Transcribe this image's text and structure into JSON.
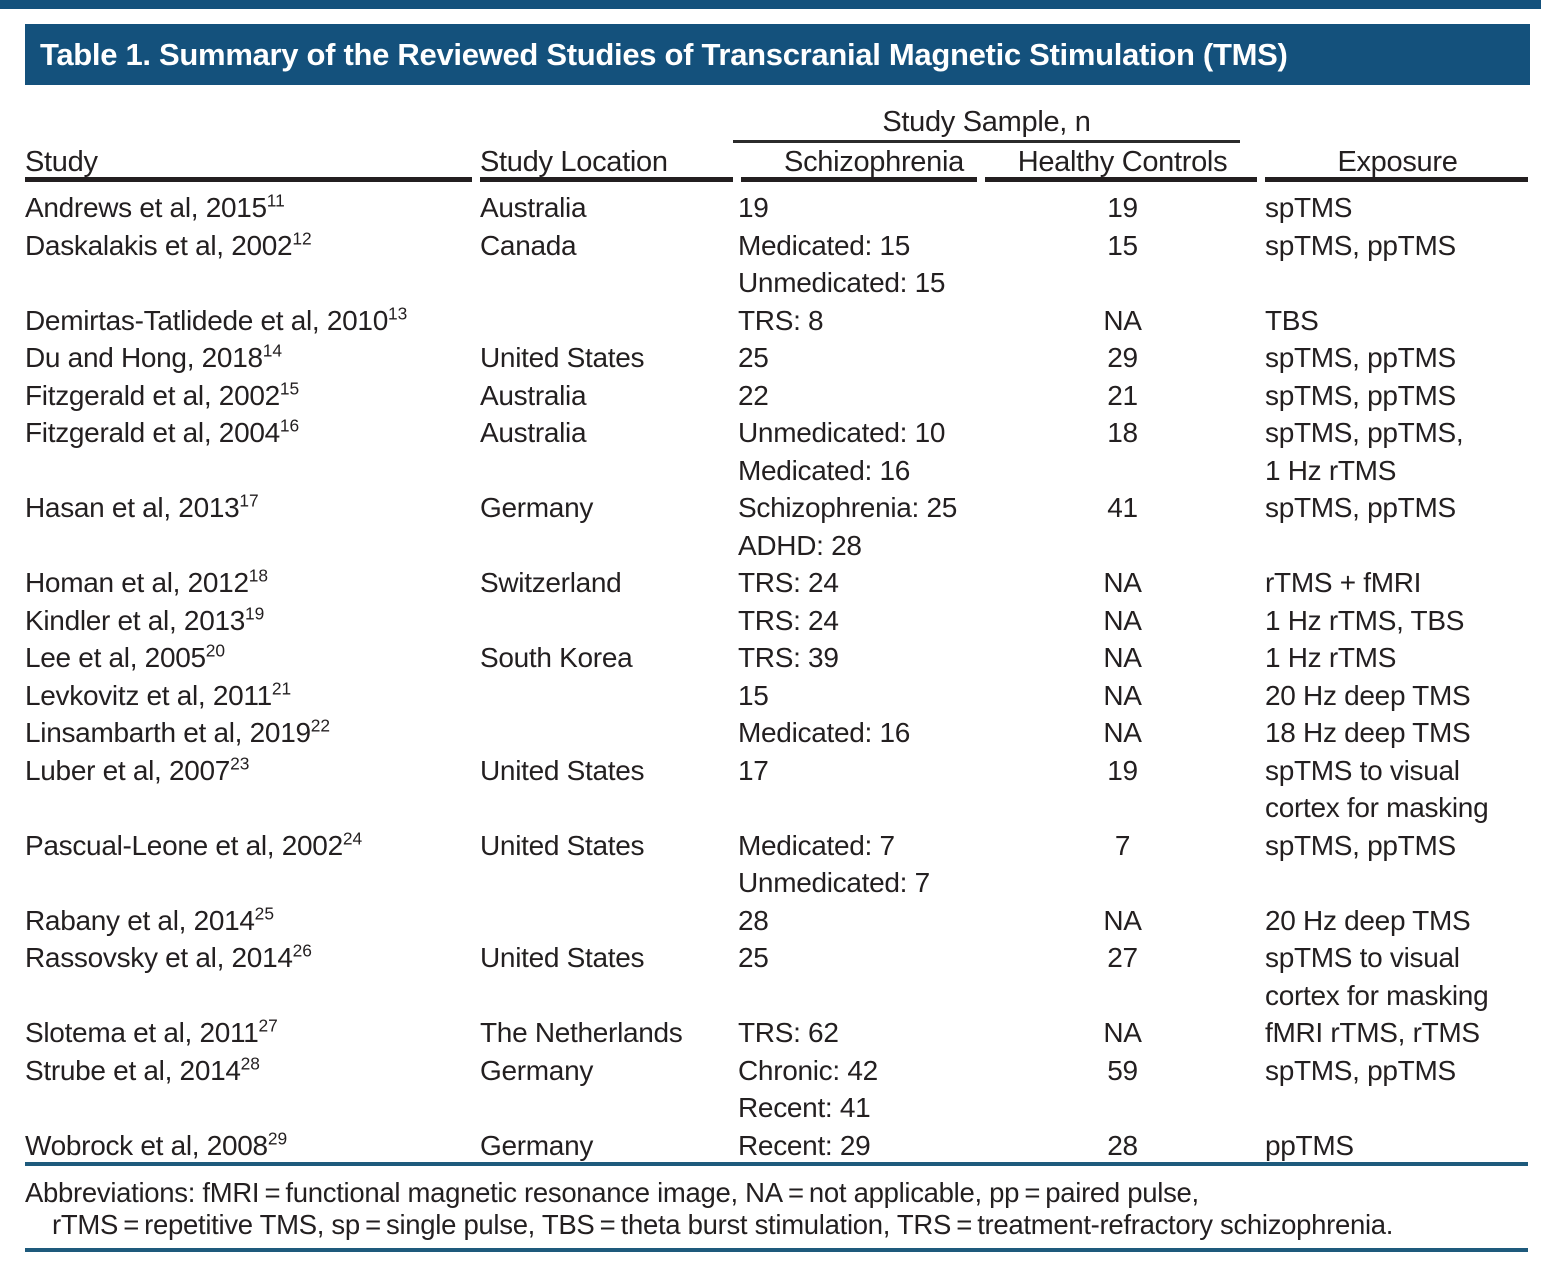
{
  "colors": {
    "navy": "#14517C",
    "rule_blue": "#1E5A7C",
    "header_rule": "#231F20",
    "text": "#231F20",
    "title_text": "#FFFFFF"
  },
  "title": "Table 1. Summary of the Reviewed Studies of Transcranial Magnetic Stimulation (TMS)",
  "table": {
    "spanner_label": "Study Sample, n",
    "columns": {
      "study": "Study",
      "location": "Study Location",
      "schizophrenia": "Schizophrenia",
      "healthy": "Healthy Controls",
      "exposure": "Exposure"
    },
    "rows": [
      {
        "study": "Andrews et al, 2015",
        "ref": "11",
        "location": "Australia",
        "schizophrenia": [
          "19"
        ],
        "healthy": "19",
        "exposure": [
          "spTMS"
        ]
      },
      {
        "study": "Daskalakis et al, 2002",
        "ref": "12",
        "location": "Canada",
        "schizophrenia": [
          "Medicated: 15",
          "Unmedicated: 15"
        ],
        "healthy": "15",
        "exposure": [
          "spTMS, ppTMS"
        ]
      },
      {
        "study": "Demirtas-Tatlidede et al, 2010",
        "ref": "13",
        "location": "",
        "schizophrenia": [
          "TRS: 8"
        ],
        "healthy": "NA",
        "exposure": [
          "TBS"
        ]
      },
      {
        "study": "Du and Hong, 2018",
        "ref": "14",
        "location": "United States",
        "schizophrenia": [
          "25"
        ],
        "healthy": "29",
        "exposure": [
          "spTMS, ppTMS"
        ]
      },
      {
        "study": "Fitzgerald et al, 2002",
        "ref": "15",
        "location": "Australia",
        "schizophrenia": [
          "22"
        ],
        "healthy": "21",
        "exposure": [
          "spTMS, ppTMS"
        ]
      },
      {
        "study": "Fitzgerald et al, 2004",
        "ref": "16",
        "location": "Australia",
        "schizophrenia": [
          "Unmedicated: 10",
          "Medicated: 16"
        ],
        "healthy": "18",
        "exposure": [
          "spTMS, ppTMS,",
          "1 Hz rTMS"
        ]
      },
      {
        "study": "Hasan et al, 2013",
        "ref": "17",
        "location": "Germany",
        "schizophrenia": [
          "Schizophrenia: 25",
          "ADHD: 28"
        ],
        "healthy": "41",
        "exposure": [
          "spTMS, ppTMS"
        ]
      },
      {
        "study": "Homan et al, 2012",
        "ref": "18",
        "location": "Switzerland",
        "schizophrenia": [
          "TRS: 24"
        ],
        "healthy": "NA",
        "exposure": [
          "rTMS + fMRI"
        ]
      },
      {
        "study": "Kindler et al, 2013",
        "ref": "19",
        "location": "",
        "schizophrenia": [
          "TRS: 24"
        ],
        "healthy": "NA",
        "exposure": [
          "1 Hz rTMS, TBS"
        ]
      },
      {
        "study": "Lee et al, 2005",
        "ref": "20",
        "location": "South Korea",
        "schizophrenia": [
          "TRS: 39"
        ],
        "healthy": "NA",
        "exposure": [
          "1 Hz rTMS"
        ]
      },
      {
        "study": "Levkovitz et al, 2011",
        "ref": "21",
        "location": "",
        "schizophrenia": [
          "15"
        ],
        "healthy": "NA",
        "exposure": [
          "20 Hz deep TMS"
        ]
      },
      {
        "study": "Linsambarth et al, 2019",
        "ref": "22",
        "location": "",
        "schizophrenia": [
          "Medicated: 16"
        ],
        "healthy": "NA",
        "exposure": [
          "18 Hz deep TMS"
        ]
      },
      {
        "study": "Luber et al, 2007",
        "ref": "23",
        "location": "United States",
        "schizophrenia": [
          "17"
        ],
        "healthy": "19",
        "exposure": [
          "spTMS to visual",
          "cortex for masking"
        ]
      },
      {
        "study": "Pascual-Leone et al, 2002",
        "ref": "24",
        "location": "United States",
        "schizophrenia": [
          "Medicated: 7",
          "Unmedicated: 7"
        ],
        "healthy": "7",
        "exposure": [
          "spTMS, ppTMS"
        ]
      },
      {
        "study": "Rabany et al, 2014",
        "ref": "25",
        "location": "",
        "schizophrenia": [
          "28"
        ],
        "healthy": "NA",
        "exposure": [
          "20 Hz deep TMS"
        ]
      },
      {
        "study": "Rassovsky et al, 2014",
        "ref": "26",
        "location": "United States",
        "schizophrenia": [
          "25"
        ],
        "healthy": "27",
        "exposure": [
          "spTMS to visual",
          "cortex for masking"
        ]
      },
      {
        "study": "Slotema et al, 2011",
        "ref": "27",
        "location": "The Netherlands",
        "schizophrenia": [
          "TRS: 62"
        ],
        "healthy": "NA",
        "exposure": [
          "fMRI rTMS, rTMS"
        ]
      },
      {
        "study": "Strube et al, 2014",
        "ref": "28",
        "location": "Germany",
        "schizophrenia": [
          "Chronic: 42",
          "Recent: 41"
        ],
        "healthy": "59",
        "exposure": [
          "spTMS, ppTMS"
        ]
      },
      {
        "study": "Wobrock et al, 2008",
        "ref": "29",
        "location": "Germany",
        "schizophrenia": [
          "Recent: 29"
        ],
        "healthy": "28",
        "exposure": [
          "ppTMS"
        ]
      }
    ]
  },
  "footnote": {
    "line1": "Abbreviations: fMRI = functional magnetic resonance image, NA = not applicable, pp = paired pulse,",
    "line2": "rTMS = repetitive TMS, sp = single pulse, TBS = theta burst stimulation, TRS = treatment-refractory schizophrenia."
  }
}
